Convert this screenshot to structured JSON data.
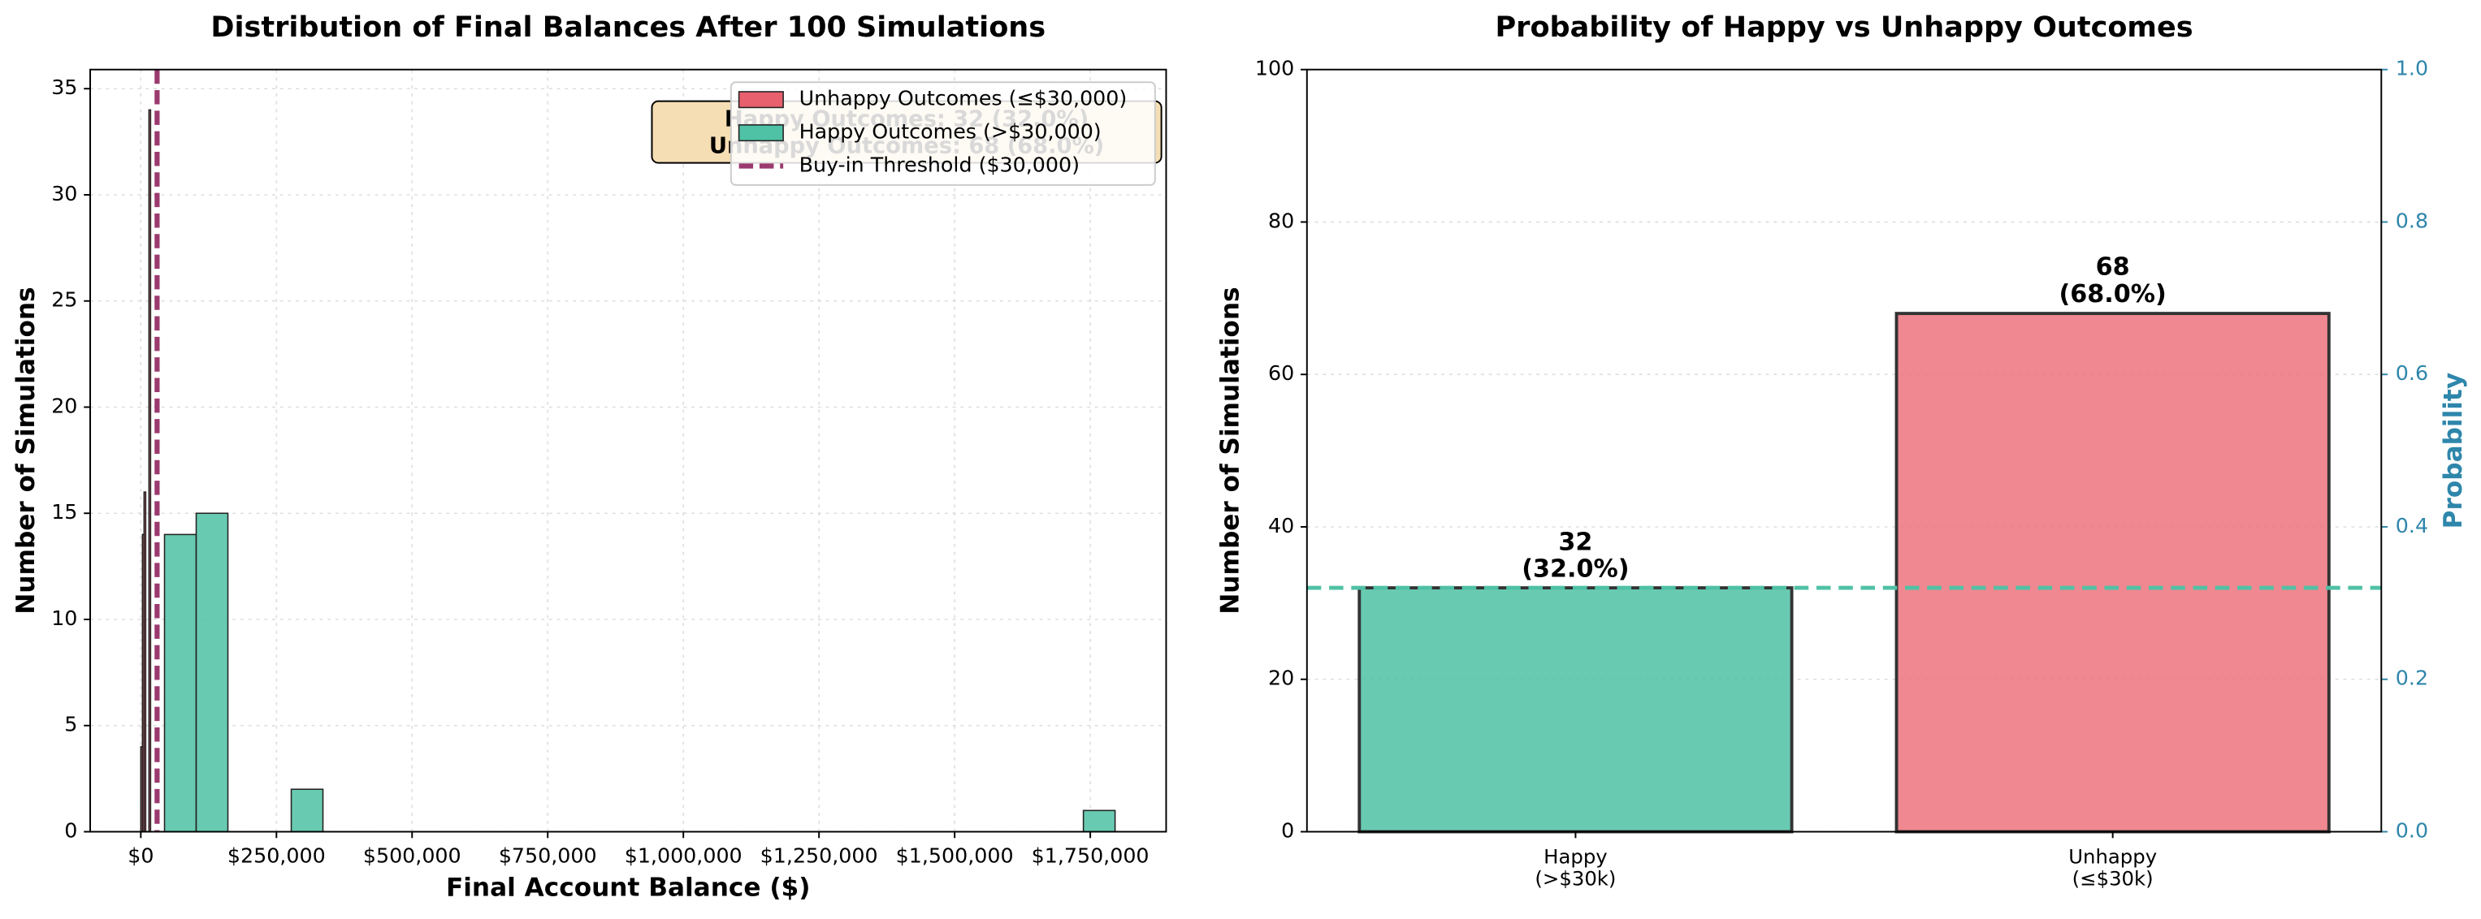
{
  "chart_data": [
    {
      "type": "histogram",
      "title": "Distribution of Final Balances After 100 Simulations",
      "x_label": "Final Account Balance ($)",
      "y_label": "Number of Simulations",
      "series": [
        {
          "name": "Unhappy Outcomes (≤$30,000)",
          "color": "#e8606e",
          "bins": [
            0,
            3000,
            6000,
            9000,
            12000,
            15000,
            18000,
            21000,
            24000,
            27000,
            30000
          ],
          "values": [
            4,
            14,
            16,
            0,
            0,
            34,
            0,
            0,
            0,
            0
          ]
        },
        {
          "name": "Happy Outcomes (>$30,000)",
          "color": "#4fc1a5",
          "bins": [
            43700,
            102100,
            160500,
            218900,
            277300,
            335700,
            394100,
            452500,
            510900,
            569300,
            627700,
            686100,
            744500,
            802900,
            861300,
            919700,
            978100,
            1036500,
            1094900,
            1153300,
            1211700,
            1270100,
            1328500,
            1386900,
            1445300,
            1503700,
            1562100,
            1620500,
            1678900,
            1737300,
            1795700
          ],
          "values": [
            14,
            15,
            0,
            0,
            2,
            0,
            0,
            0,
            0,
            0,
            0,
            0,
            0,
            0,
            0,
            0,
            0,
            0,
            0,
            0,
            0,
            0,
            0,
            0,
            0,
            0,
            0,
            0,
            0,
            1
          ]
        }
      ],
      "threshold": {
        "name": "Buy-in Threshold ($30,000)",
        "value": 30000,
        "color": "#9b3a6e"
      },
      "annotation": [
        "Happy Outcomes: 32 (32.0%)",
        "Unhappy Outcomes: 68 (68.0%)"
      ],
      "annotation_color": "#f5deb3",
      "xlim": [
        -93300,
        1889800
      ],
      "xticks": [
        {
          "value": 0,
          "label": "$0"
        },
        {
          "value": 250000,
          "label": "$250,000"
        },
        {
          "value": 500000,
          "label": "$500,000"
        },
        {
          "value": 750000,
          "label": "$750,000"
        },
        {
          "value": 1000000,
          "label": "$1,000,000"
        },
        {
          "value": 1250000,
          "label": "$1,250,000"
        },
        {
          "value": 1500000,
          "label": "$1,500,000"
        },
        {
          "value": 1750000,
          "label": "$1,750,000"
        }
      ],
      "ylim": [
        0,
        35.9
      ],
      "yticks": [
        0,
        5,
        10,
        15,
        20,
        25,
        30,
        35
      ],
      "grid": "both",
      "legend": "upper right"
    },
    {
      "type": "bar",
      "title": "Probability of Happy vs Unhappy Outcomes",
      "y_label": "Number of Simulations",
      "y2_label": "Probability",
      "y2_color": "#2e86ab",
      "categories": [
        "Happy\n(>$30k)",
        "Unhappy\n(≤$30k)"
      ],
      "values": [
        32,
        68
      ],
      "value_labels": [
        "32\n(32.0%)",
        "68\n(68.0%)"
      ],
      "colors": [
        "#4fc1a5",
        "#ec737d"
      ],
      "ylim": [
        0,
        100
      ],
      "yticks": [
        0,
        20,
        40,
        60,
        80,
        100
      ],
      "y2lim": [
        0,
        1
      ],
      "y2ticks": [
        {
          "value": 0,
          "label": "0.0"
        },
        {
          "value": 0.2,
          "label": "0.2"
        },
        {
          "value": 0.4,
          "label": "0.4"
        },
        {
          "value": 0.6,
          "label": "0.6"
        },
        {
          "value": 0.8,
          "label": "0.8"
        },
        {
          "value": 1,
          "label": "1.0"
        }
      ],
      "reference_line": {
        "value": 0.32,
        "axis": "y2",
        "color": "#4fc1a5"
      },
      "grid": "y"
    }
  ]
}
